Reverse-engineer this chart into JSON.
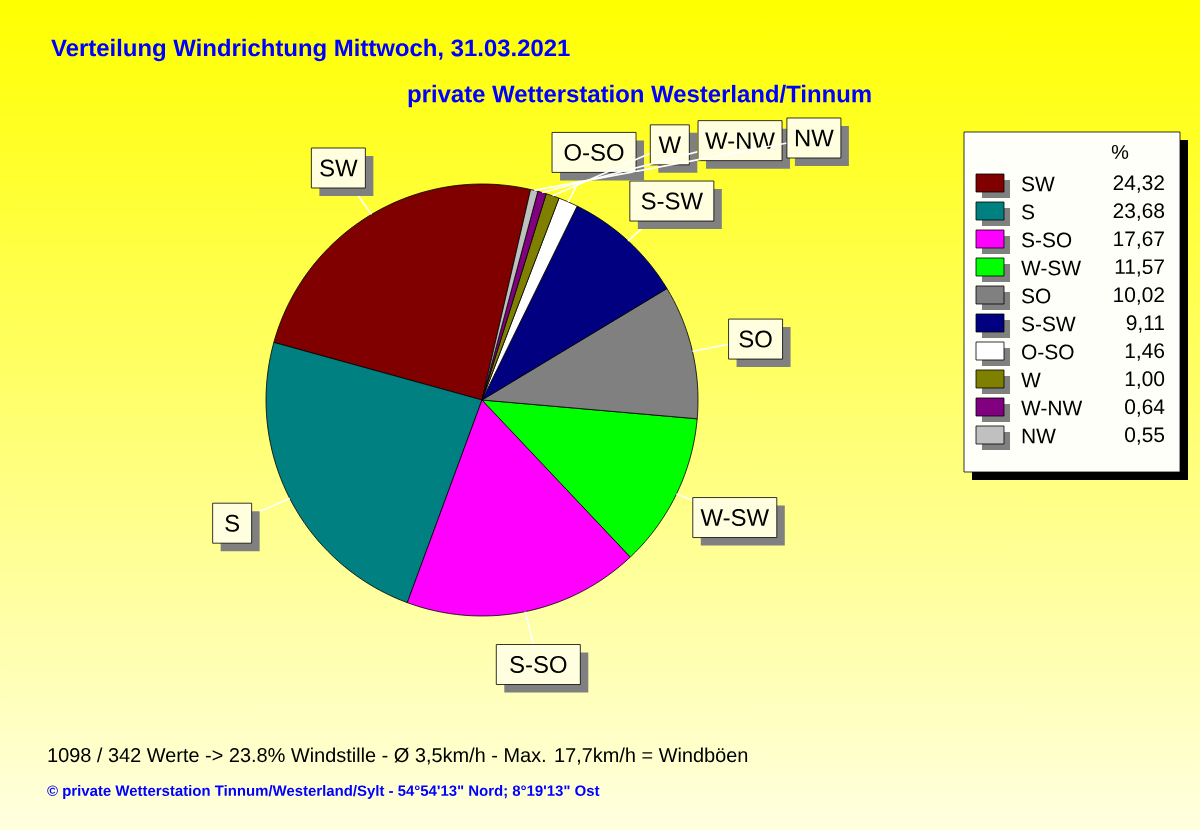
{
  "chart_data": {
    "type": "pie",
    "title": "Verteilung Windrichtung   Mittwoch, 31.03.2021",
    "subtitle": "private Wetterstation Westerland/Tinnum",
    "categories": [
      "SW",
      "S",
      "S-SO",
      "W-SW",
      "SO",
      "S-SW",
      "O-SO",
      "W",
      "W-NW",
      "NW"
    ],
    "values": [
      24.32,
      23.68,
      17.67,
      11.57,
      10.02,
      9.11,
      1.46,
      1.0,
      0.64,
      0.55
    ],
    "value_labels": [
      "24,32",
      "23,68",
      "17,67",
      "11,57",
      "10,02",
      "9,11",
      "1,46",
      "1,00",
      "0,64",
      "0,55"
    ],
    "colors": [
      "#800000",
      "#008080",
      "#ff00ff",
      "#00ff00",
      "#808080",
      "#000080",
      "#ffffff",
      "#808000",
      "#800080",
      "#c0c0c0"
    ],
    "legend": "right",
    "legend_title": "%",
    "annotations": [
      "1098 / 342 Werte  -> 23.8% Windstille   -   Ø 3,5km/h  -  Max. 17,7km/h = Windböen",
      "© private Wetterstation Tinnum/Westerland/Sylt  -  54°54'13\" Nord; 8°19'13\" Ost"
    ]
  }
}
